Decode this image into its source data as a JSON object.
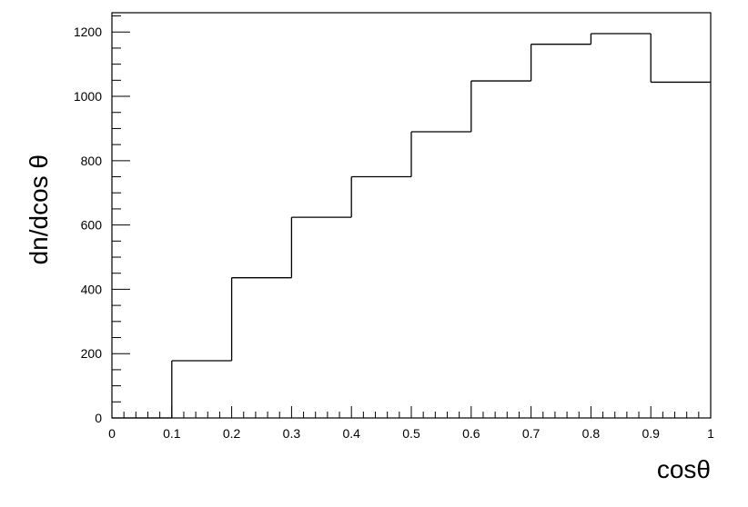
{
  "chart_data": {
    "type": "bar",
    "histogram": true,
    "xlabel": "cosθ",
    "ylabel": "dn/dcos θ",
    "xlim": [
      0,
      1
    ],
    "ylim": [
      0,
      1260
    ],
    "bin_edges": [
      0,
      0.1,
      0.2,
      0.3,
      0.4,
      0.5,
      0.6,
      0.7,
      0.8,
      0.9,
      1.0
    ],
    "values": [
      0,
      178,
      436,
      624,
      750,
      890,
      1048,
      1162,
      1195,
      1044
    ],
    "x_ticks": [
      0,
      0.1,
      0.2,
      0.3,
      0.4,
      0.5,
      0.6,
      0.7,
      0.8,
      0.9,
      1
    ],
    "x_tick_labels": [
      "0",
      "0.1",
      "0.2",
      "0.3",
      "0.4",
      "0.5",
      "0.6",
      "0.7",
      "0.8",
      "0.9",
      "1"
    ],
    "y_ticks": [
      0,
      200,
      400,
      600,
      800,
      1000,
      1200
    ],
    "y_tick_labels": [
      "0",
      "200",
      "400",
      "600",
      "800",
      "1000",
      "1200"
    ],
    "x_minor_step": 0.02,
    "y_minor_step": 50,
    "grid": false,
    "line_color": "#000000"
  }
}
